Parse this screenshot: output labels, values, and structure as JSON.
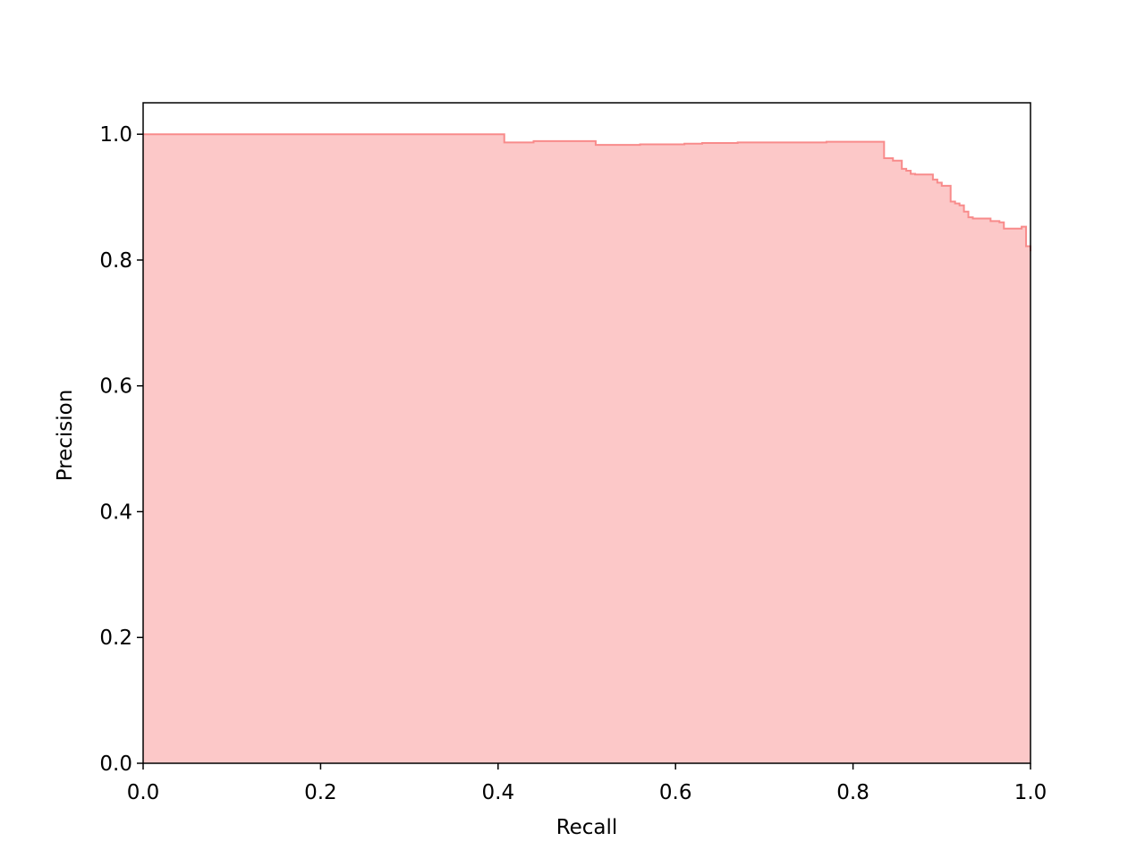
{
  "chart_data": {
    "type": "area",
    "title": "",
    "xlabel": "Recall",
    "ylabel": "Precision",
    "xlim": [
      0.0,
      1.0
    ],
    "ylim": [
      0.0,
      1.05
    ],
    "grid": false,
    "legend": "none",
    "xticks": [
      "0.0",
      "0.2",
      "0.4",
      "0.6",
      "0.8",
      "1.0"
    ],
    "yticks": [
      "0.0",
      "0.2",
      "0.4",
      "0.6",
      "0.8",
      "1.0"
    ],
    "colors": {
      "fill": "#fcc8c8",
      "line": "#f88b8b"
    },
    "series": [
      {
        "step": "post",
        "x": [
          0.0,
          0.407,
          0.41,
          0.44,
          0.51,
          0.515,
          0.56,
          0.61,
          0.63,
          0.67,
          0.77,
          0.8,
          0.835,
          0.845,
          0.855,
          0.86,
          0.865,
          0.87,
          0.89,
          0.895,
          0.9,
          0.91,
          0.915,
          0.92,
          0.925,
          0.93,
          0.935,
          0.955,
          0.965,
          0.97,
          0.99,
          0.995,
          1.0
        ],
        "y": [
          1.0,
          0.987,
          0.987,
          0.989,
          0.983,
          0.983,
          0.984,
          0.985,
          0.986,
          0.987,
          0.988,
          0.988,
          0.962,
          0.958,
          0.945,
          0.942,
          0.937,
          0.936,
          0.928,
          0.923,
          0.918,
          0.893,
          0.89,
          0.887,
          0.877,
          0.868,
          0.866,
          0.862,
          0.86,
          0.85,
          0.853,
          0.822,
          0.814
        ]
      }
    ]
  }
}
